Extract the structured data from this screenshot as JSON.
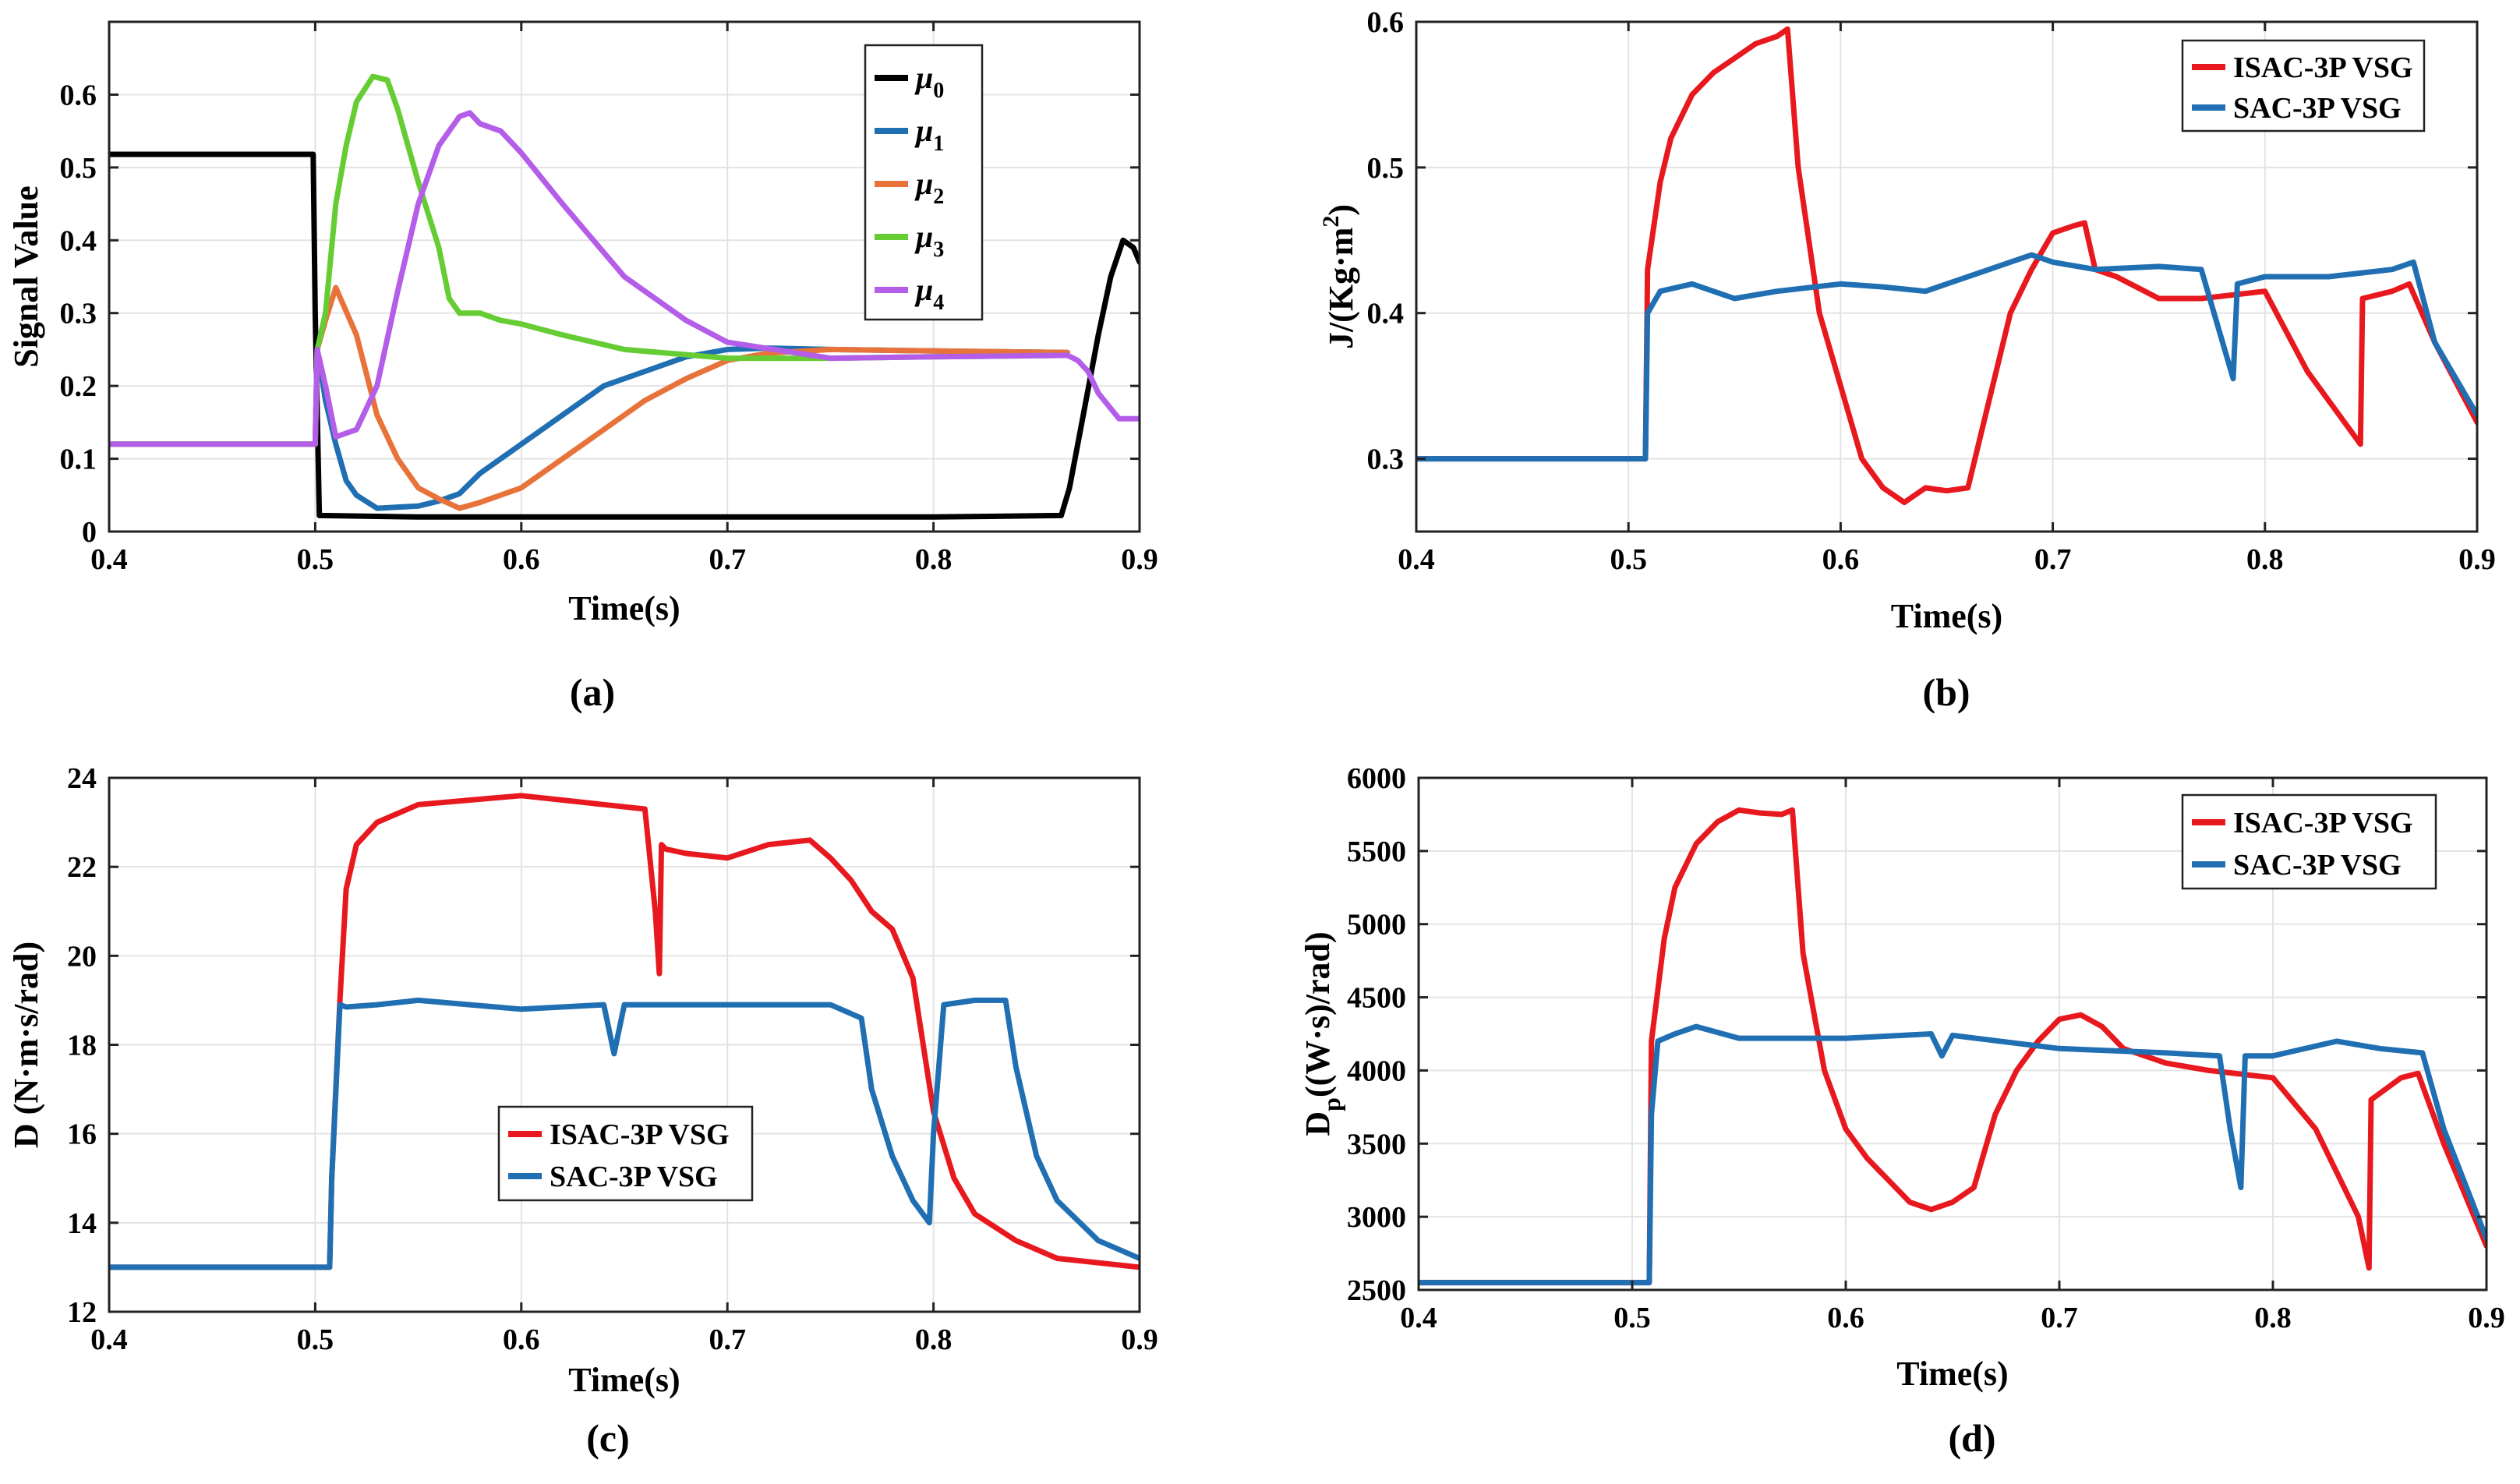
{
  "chart_data": [
    {
      "type": "line",
      "id": "a",
      "caption": "(a)",
      "xlabel": "Time(s)",
      "ylabel": "Signal Value",
      "xlim": [
        0.4,
        0.9
      ],
      "ylim": [
        0,
        0.7
      ],
      "xticks": [
        0.4,
        0.5,
        0.6,
        0.7,
        0.8,
        0.9
      ],
      "xtick_labels": [
        "0.4",
        "0.5",
        "0.6",
        "0.7",
        "0.8",
        "0.9"
      ],
      "yticks": [
        0,
        0.1,
        0.2,
        0.3,
        0.4,
        0.5,
        0.6
      ],
      "ytick_labels": [
        "0",
        "0.1",
        "0.2",
        "0.3",
        "0.4",
        "0.5",
        "0.6"
      ],
      "grid": true,
      "legend_position": "top-right",
      "series": [
        {
          "name": "μ0",
          "symbol": "μ",
          "sub": "0",
          "color": "#000000",
          "x": [
            0.4,
            0.499,
            0.5,
            0.502,
            0.55,
            0.6,
            0.7,
            0.8,
            0.862,
            0.866,
            0.872,
            0.88,
            0.886,
            0.892,
            0.897,
            0.9
          ],
          "y": [
            0.518,
            0.518,
            0.3,
            0.022,
            0.02,
            0.02,
            0.02,
            0.02,
            0.022,
            0.06,
            0.15,
            0.27,
            0.35,
            0.4,
            0.39,
            0.37
          ]
        },
        {
          "name": "μ1",
          "symbol": "μ",
          "sub": "1",
          "color": "#1f6fb2",
          "x": [
            0.4,
            0.5,
            0.501,
            0.505,
            0.51,
            0.515,
            0.52,
            0.53,
            0.55,
            0.56,
            0.57,
            0.58,
            0.6,
            0.62,
            0.64,
            0.66,
            0.68,
            0.7,
            0.72,
            0.75,
            0.8,
            0.865
          ],
          "y": [
            0.12,
            0.12,
            0.25,
            0.18,
            0.12,
            0.07,
            0.05,
            0.032,
            0.035,
            0.042,
            0.052,
            0.08,
            0.12,
            0.16,
            0.2,
            0.22,
            0.24,
            0.25,
            0.252,
            0.25,
            0.248,
            0.246
          ]
        },
        {
          "name": "μ2",
          "symbol": "μ",
          "sub": "2",
          "color": "#e8733a",
          "x": [
            0.4,
            0.5,
            0.501,
            0.505,
            0.51,
            0.52,
            0.53,
            0.54,
            0.55,
            0.56,
            0.57,
            0.58,
            0.6,
            0.62,
            0.64,
            0.66,
            0.68,
            0.7,
            0.72,
            0.75,
            0.8,
            0.865
          ],
          "y": [
            0.12,
            0.12,
            0.25,
            0.29,
            0.335,
            0.27,
            0.16,
            0.1,
            0.06,
            0.045,
            0.032,
            0.04,
            0.06,
            0.1,
            0.14,
            0.18,
            0.21,
            0.235,
            0.245,
            0.25,
            0.248,
            0.246
          ]
        },
        {
          "name": "μ3",
          "symbol": "μ",
          "sub": "3",
          "color": "#66cc33",
          "x": [
            0.4,
            0.5,
            0.501,
            0.505,
            0.51,
            0.515,
            0.52,
            0.528,
            0.535,
            0.54,
            0.55,
            0.56,
            0.565,
            0.57,
            0.58,
            0.59,
            0.6,
            0.62,
            0.65,
            0.7,
            0.75,
            0.8,
            0.865
          ],
          "y": [
            0.12,
            0.12,
            0.25,
            0.3,
            0.45,
            0.53,
            0.59,
            0.625,
            0.62,
            0.58,
            0.48,
            0.39,
            0.32,
            0.3,
            0.3,
            0.29,
            0.285,
            0.27,
            0.25,
            0.238,
            0.238,
            0.24,
            0.242
          ]
        },
        {
          "name": "μ4",
          "symbol": "μ",
          "sub": "4",
          "color": "#b35de8",
          "x": [
            0.4,
            0.5,
            0.501,
            0.505,
            0.51,
            0.52,
            0.53,
            0.54,
            0.55,
            0.56,
            0.57,
            0.575,
            0.58,
            0.59,
            0.6,
            0.62,
            0.65,
            0.68,
            0.7,
            0.75,
            0.8,
            0.865,
            0.87,
            0.875,
            0.88,
            0.89,
            0.9
          ],
          "y": [
            0.12,
            0.12,
            0.25,
            0.2,
            0.13,
            0.14,
            0.2,
            0.33,
            0.45,
            0.53,
            0.57,
            0.575,
            0.56,
            0.55,
            0.52,
            0.45,
            0.35,
            0.29,
            0.26,
            0.238,
            0.24,
            0.242,
            0.235,
            0.22,
            0.19,
            0.155,
            0.155
          ]
        }
      ]
    },
    {
      "type": "line",
      "id": "b",
      "caption": "(b)",
      "xlabel": "Time(s)",
      "ylabel": "J/(Kg·m²)",
      "ylabel_main": "J/(Kg·m",
      "ylabel_sup": "2",
      "ylabel_end": ")",
      "xlim": [
        0.4,
        0.9
      ],
      "ylim": [
        0.25,
        0.6
      ],
      "xticks": [
        0.4,
        0.5,
        0.6,
        0.7,
        0.8,
        0.9
      ],
      "xtick_labels": [
        "0.4",
        "0.5",
        "0.6",
        "0.7",
        "0.8",
        "0.9"
      ],
      "yticks": [
        0.3,
        0.4,
        0.5,
        0.6
      ],
      "ytick_labels": [
        "0.3",
        "0.4",
        "0.5",
        "0.6"
      ],
      "grid": true,
      "legend_position": "top-right",
      "series": [
        {
          "name": "ISAC-3P VSG",
          "color": "#e8191e",
          "x": [
            0.4,
            0.508,
            0.509,
            0.515,
            0.52,
            0.53,
            0.54,
            0.55,
            0.56,
            0.57,
            0.575,
            0.58,
            0.59,
            0.6,
            0.61,
            0.62,
            0.63,
            0.64,
            0.65,
            0.66,
            0.67,
            0.68,
            0.69,
            0.7,
            0.71,
            0.715,
            0.72,
            0.73,
            0.75,
            0.77,
            0.8,
            0.82,
            0.84,
            0.845,
            0.846,
            0.86,
            0.868,
            0.88,
            0.9
          ],
          "y": [
            0.3,
            0.3,
            0.43,
            0.49,
            0.52,
            0.55,
            0.565,
            0.575,
            0.585,
            0.59,
            0.595,
            0.5,
            0.4,
            0.35,
            0.3,
            0.28,
            0.27,
            0.28,
            0.278,
            0.28,
            0.34,
            0.4,
            0.43,
            0.455,
            0.46,
            0.462,
            0.43,
            0.425,
            0.41,
            0.41,
            0.415,
            0.36,
            0.32,
            0.31,
            0.41,
            0.415,
            0.42,
            0.38,
            0.325
          ]
        },
        {
          "name": "SAC-3P VSG",
          "color": "#1f6fb2",
          "x": [
            0.4,
            0.508,
            0.509,
            0.515,
            0.53,
            0.55,
            0.57,
            0.6,
            0.62,
            0.64,
            0.65,
            0.67,
            0.69,
            0.7,
            0.72,
            0.75,
            0.77,
            0.78,
            0.785,
            0.787,
            0.8,
            0.83,
            0.86,
            0.87,
            0.88,
            0.9
          ],
          "y": [
            0.3,
            0.3,
            0.4,
            0.415,
            0.42,
            0.41,
            0.415,
            0.42,
            0.418,
            0.415,
            0.42,
            0.43,
            0.44,
            0.435,
            0.43,
            0.432,
            0.43,
            0.38,
            0.355,
            0.42,
            0.425,
            0.425,
            0.43,
            0.435,
            0.38,
            0.33
          ]
        }
      ]
    },
    {
      "type": "line",
      "id": "c",
      "caption": "(c)",
      "xlabel": "Time(s)",
      "ylabel": "D (N·m·s/rad)",
      "xlim": [
        0.4,
        0.9
      ],
      "ylim": [
        12,
        24
      ],
      "xticks": [
        0.4,
        0.5,
        0.6,
        0.7,
        0.8,
        0.9
      ],
      "xtick_labels": [
        "0.4",
        "0.5",
        "0.6",
        "0.7",
        "0.8",
        "0.9"
      ],
      "yticks": [
        12,
        14,
        16,
        18,
        20,
        22,
        24
      ],
      "ytick_labels": [
        "12",
        "14",
        "16",
        "18",
        "20",
        "22",
        "24"
      ],
      "grid": true,
      "legend_position": "center",
      "series": [
        {
          "name": "ISAC-3P VSG",
          "color": "#e8191e",
          "x": [
            0.4,
            0.507,
            0.508,
            0.512,
            0.515,
            0.52,
            0.53,
            0.55,
            0.6,
            0.64,
            0.66,
            0.665,
            0.667,
            0.668,
            0.67,
            0.68,
            0.7,
            0.72,
            0.74,
            0.75,
            0.76,
            0.77,
            0.78,
            0.79,
            0.8,
            0.81,
            0.82,
            0.84,
            0.86,
            0.9
          ],
          "y": [
            13,
            13,
            15,
            19,
            21.5,
            22.5,
            23.0,
            23.4,
            23.6,
            23.4,
            23.3,
            21.0,
            19.6,
            22.5,
            22.4,
            22.3,
            22.2,
            22.5,
            22.6,
            22.2,
            21.7,
            21.0,
            20.6,
            19.5,
            16.5,
            15.0,
            14.2,
            13.6,
            13.2,
            13.0
          ]
        },
        {
          "name": "SAC-3P VSG",
          "color": "#1f6fb2",
          "x": [
            0.4,
            0.507,
            0.508,
            0.512,
            0.515,
            0.53,
            0.55,
            0.6,
            0.64,
            0.645,
            0.65,
            0.7,
            0.75,
            0.765,
            0.77,
            0.78,
            0.79,
            0.798,
            0.8,
            0.805,
            0.82,
            0.835,
            0.84,
            0.85,
            0.86,
            0.88,
            0.9
          ],
          "y": [
            13,
            13,
            15,
            18.9,
            18.85,
            18.9,
            19.0,
            18.8,
            18.9,
            17.8,
            18.9,
            18.9,
            18.9,
            18.6,
            17.0,
            15.5,
            14.5,
            14.0,
            16.0,
            18.9,
            19.0,
            19.0,
            17.5,
            15.5,
            14.5,
            13.6,
            13.2
          ]
        }
      ]
    },
    {
      "type": "line",
      "id": "d",
      "caption": "(d)",
      "xlabel": "Time(s)",
      "ylabel": "Dp((W·s)/rad)",
      "ylabel_main": "D",
      "ylabel_sub": "p",
      "ylabel_end": "((W·s)/rad)",
      "xlim": [
        0.4,
        0.9
      ],
      "ylim": [
        2500,
        6000
      ],
      "xticks": [
        0.4,
        0.5,
        0.6,
        0.7,
        0.8,
        0.9
      ],
      "xtick_labels": [
        "0.4",
        "0.5",
        "0.6",
        "0.7",
        "0.8",
        "0.9"
      ],
      "yticks": [
        2500,
        3000,
        3500,
        4000,
        4500,
        5000,
        5500,
        6000
      ],
      "ytick_labels": [
        "2500",
        "3000",
        "3500",
        "4000",
        "4500",
        "5000",
        "5500",
        "6000"
      ],
      "grid": true,
      "legend_position": "top-right",
      "series": [
        {
          "name": "ISAC-3P VSG",
          "color": "#e8191e",
          "x": [
            0.4,
            0.508,
            0.509,
            0.515,
            0.52,
            0.53,
            0.54,
            0.55,
            0.56,
            0.57,
            0.575,
            0.58,
            0.59,
            0.6,
            0.61,
            0.62,
            0.63,
            0.64,
            0.65,
            0.66,
            0.67,
            0.68,
            0.69,
            0.7,
            0.71,
            0.72,
            0.73,
            0.75,
            0.77,
            0.8,
            0.82,
            0.84,
            0.845,
            0.846,
            0.86,
            0.868,
            0.88,
            0.9
          ],
          "y": [
            2550,
            2550,
            4200,
            4900,
            5250,
            5550,
            5700,
            5780,
            5760,
            5750,
            5780,
            4800,
            4000,
            3600,
            3400,
            3250,
            3100,
            3050,
            3100,
            3200,
            3700,
            4000,
            4200,
            4350,
            4380,
            4300,
            4150,
            4050,
            4000,
            3950,
            3600,
            3000,
            2650,
            3800,
            3950,
            3980,
            3500,
            2800
          ]
        },
        {
          "name": "SAC-3P VSG",
          "color": "#1f6fb2",
          "x": [
            0.4,
            0.508,
            0.509,
            0.512,
            0.52,
            0.53,
            0.55,
            0.6,
            0.64,
            0.645,
            0.65,
            0.7,
            0.75,
            0.775,
            0.78,
            0.785,
            0.787,
            0.8,
            0.83,
            0.85,
            0.87,
            0.88,
            0.9
          ],
          "y": [
            2550,
            2550,
            3700,
            4200,
            4250,
            4300,
            4220,
            4220,
            4250,
            4100,
            4240,
            4150,
            4120,
            4100,
            3600,
            3200,
            4100,
            4100,
            4200,
            4150,
            4120,
            3600,
            2850
          ]
        }
      ]
    }
  ]
}
